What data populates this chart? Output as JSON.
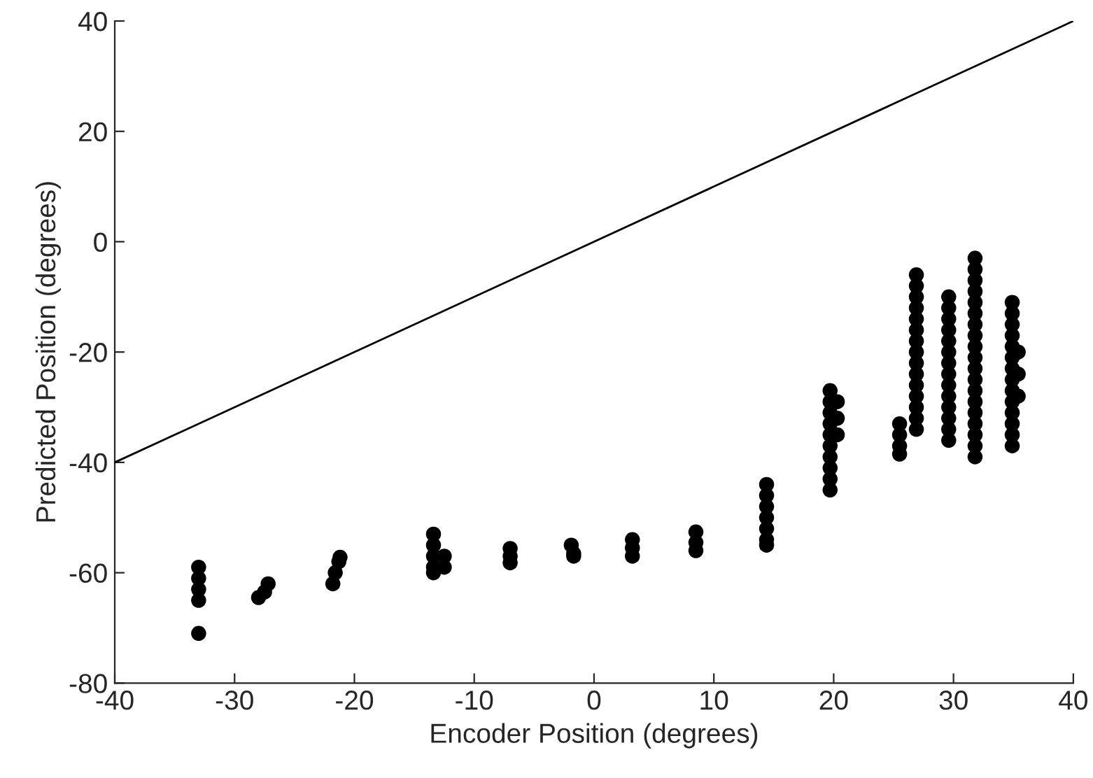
{
  "chart_data": {
    "type": "scatter",
    "xlabel": "Encoder Position (degrees)",
    "ylabel": "Predicted Position (degrees)",
    "xlim": [
      -40,
      40
    ],
    "xticks": [
      -40,
      -30,
      -20,
      -10,
      0,
      10,
      20,
      30,
      40
    ],
    "ylim": [
      -80,
      40
    ],
    "yticks": [
      -80,
      -60,
      -40,
      -20,
      0,
      20,
      40
    ],
    "grid": false,
    "marker": "circle",
    "series": [
      {
        "color": "#000000",
        "x": [
          -33,
          -33,
          -33,
          -33,
          -33,
          -28,
          -27.5,
          -27.2,
          -21.8,
          -21.6,
          -21.3,
          -21.2,
          -13.4,
          -13.4,
          -13.4,
          -13.4,
          -13.4,
          -12.5,
          -12.5,
          -7,
          -7,
          -7,
          -1.9,
          -1.7,
          -1.7,
          3.2,
          3.2,
          3.2,
          8.5,
          8.5,
          8.5,
          14.4,
          14.4,
          14.4,
          14.4,
          14.4,
          14.4,
          14.4,
          19.7,
          19.7,
          19.7,
          19.7,
          19.7,
          19.7,
          19.7,
          19.7,
          19.7,
          19.7,
          20.3,
          20.3,
          20.3,
          25.5,
          25.5,
          25.5,
          25.5,
          26.9,
          26.9,
          26.9,
          26.9,
          26.9,
          26.9,
          26.9,
          26.9,
          26.9,
          26.9,
          26.9,
          26.9,
          26.9,
          26.9,
          26.9,
          29.6,
          29.6,
          29.6,
          29.6,
          29.6,
          29.6,
          29.6,
          29.6,
          29.6,
          29.6,
          29.6,
          29.6,
          29.6,
          29.6,
          31.8,
          31.8,
          31.8,
          31.8,
          31.8,
          31.8,
          31.8,
          31.8,
          31.8,
          31.8,
          31.8,
          31.8,
          31.8,
          31.8,
          31.8,
          31.8,
          31.8,
          31.8,
          31.8,
          34.9,
          34.9,
          34.9,
          34.9,
          34.9,
          34.9,
          34.9,
          34.9,
          34.9,
          34.9,
          34.9,
          34.9,
          34.9,
          34.9,
          35.4,
          35.4,
          35.4
        ],
        "values": [
          -59,
          -61,
          -63,
          -65,
          -71,
          -64.5,
          -63.5,
          -62,
          -62,
          -60,
          -58,
          -57.2,
          -53,
          -55,
          -57,
          -59,
          -60,
          -57,
          -59,
          -55.6,
          -57,
          -58.2,
          -55,
          -56.5,
          -57,
          -54,
          -55.5,
          -57,
          -52.6,
          -54.5,
          -56,
          -44,
          -46,
          -48,
          -50,
          -52,
          -54,
          -55,
          -27,
          -29,
          -31,
          -33,
          -35,
          -37,
          -39,
          -41,
          -43,
          -45,
          -29,
          -32,
          -35,
          -33,
          -35,
          -37,
          -38.5,
          -6,
          -8,
          -10,
          -12,
          -14,
          -16,
          -18,
          -20,
          -22,
          -24,
          -26,
          -28,
          -30,
          -32,
          -34,
          -10,
          -12,
          -14,
          -16,
          -18,
          -20,
          -22,
          -24,
          -26,
          -28,
          -30,
          -32,
          -34,
          -36,
          -3,
          -5,
          -7,
          -9,
          -11,
          -13,
          -15,
          -17,
          -19,
          -21,
          -23,
          -25,
          -27,
          -29,
          -31,
          -33,
          -35,
          -37,
          -39,
          -11,
          -13,
          -15,
          -17,
          -19,
          -21,
          -23,
          -25,
          -27,
          -29,
          -31,
          -33,
          -35,
          -37,
          -20,
          -24,
          -28
        ]
      },
      {
        "type": "line",
        "color": "#000000",
        "marker": "none",
        "x": [
          -40,
          40
        ],
        "values": [
          -40,
          40
        ]
      }
    ]
  }
}
